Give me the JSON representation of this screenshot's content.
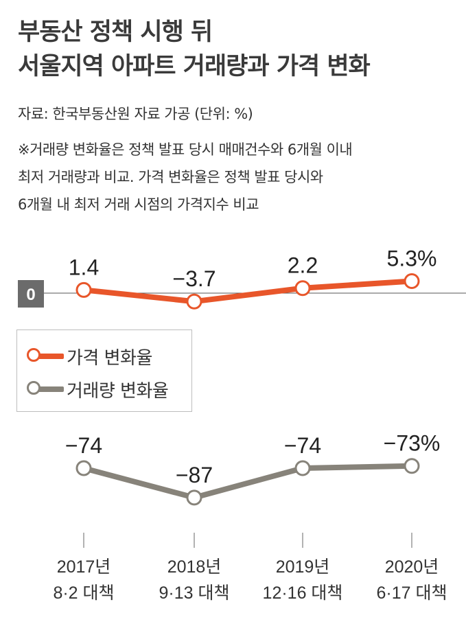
{
  "title": {
    "line1": "부동산 정책 시행 뒤",
    "line2": "서울지역 아파트 거래량과 가격 변화"
  },
  "source": "자료: 한국부동산원 자료 가공  (단위: %)",
  "note": {
    "line1": "※거래량 변화율은 정책 발표 당시 매매건수와 6개월 이내",
    "line2": "최저 거래량과 비교. 가격 변화율은 정책 발표 당시와",
    "line3": "6개월 내 최저 거래 시점의 가격지수 비교"
  },
  "chart_data": {
    "type": "line",
    "categories": [
      {
        "year": "2017년",
        "policy": "8·2 대책"
      },
      {
        "year": "2018년",
        "policy": "9·13 대책"
      },
      {
        "year": "2019년",
        "policy": "12·16 대책"
      },
      {
        "year": "2020년",
        "policy": "6·17 대책"
      }
    ],
    "zero_label": "0",
    "series": [
      {
        "name": "가격 변화율",
        "values": [
          1.4,
          -3.7,
          2.2,
          5.3
        ],
        "labels": [
          "1.4",
          "−3.7",
          "2.2",
          "5.3%"
        ],
        "color": "#e8562a"
      },
      {
        "name": "거래량 변화율",
        "values": [
          -74,
          -87,
          -74,
          -73
        ],
        "labels": [
          "−74",
          "−87",
          "−74",
          "−73%"
        ],
        "color": "#87837a"
      }
    ]
  }
}
